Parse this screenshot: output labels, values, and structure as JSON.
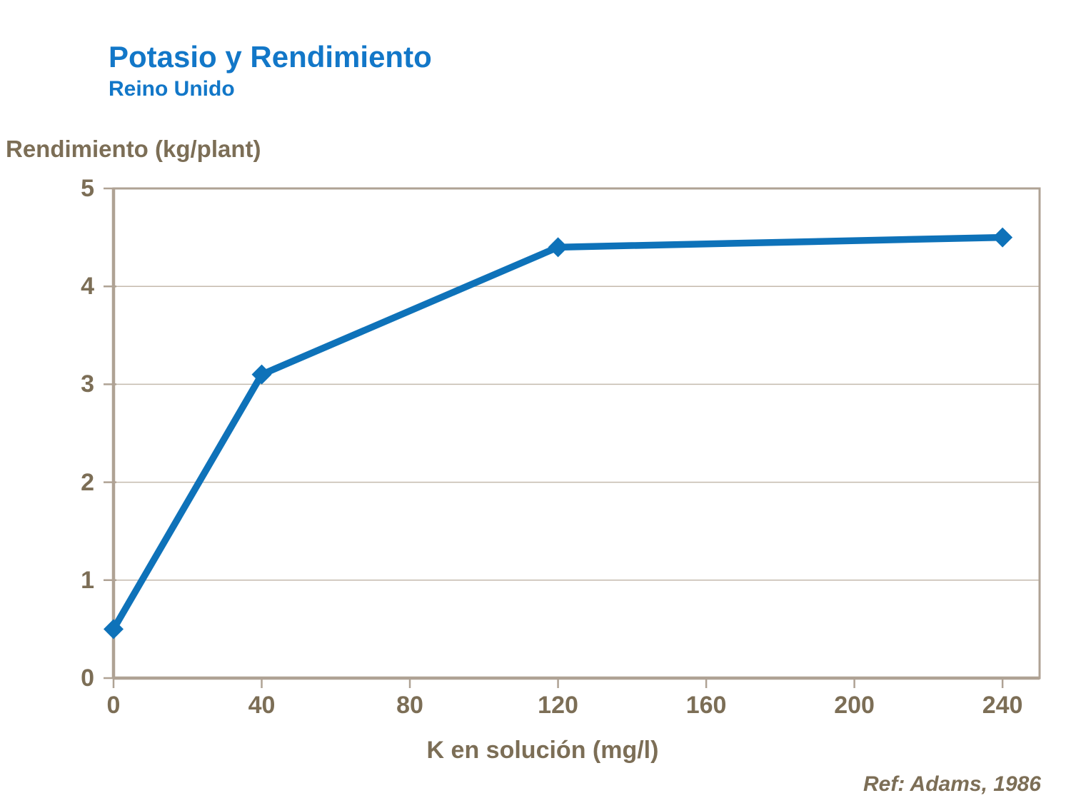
{
  "chart_data": {
    "type": "line",
    "title": "Potasio y Rendimiento",
    "subtitle": "Reino Unido",
    "ylabel": "Rendimiento (kg/plant)",
    "xlabel": "K en solución (mg/l)",
    "reference": "Ref: Adams, 1986",
    "x": [
      0,
      40,
      120,
      240
    ],
    "series": [
      {
        "name": "Rendimiento",
        "values": [
          0.5,
          3.1,
          4.4,
          4.5
        ]
      }
    ],
    "xlim": [
      0,
      250
    ],
    "ylim": [
      0,
      5
    ],
    "x_ticks": [
      0,
      40,
      80,
      120,
      160,
      200,
      240
    ],
    "y_ticks": [
      0,
      1,
      2,
      3,
      4,
      5
    ],
    "grid": "horizontal",
    "legend": "none",
    "marker": "diamond",
    "colors": {
      "title": "#1277C8",
      "line": "#0E72B9",
      "text": "#7C6E56",
      "axis": "#AFA294",
      "grid": "#C4BAAD",
      "background": "#FFFFFF"
    }
  }
}
